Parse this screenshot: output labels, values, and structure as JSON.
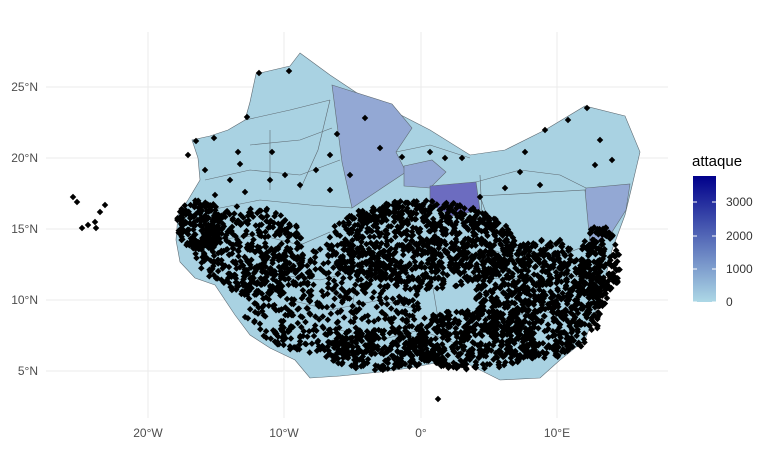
{
  "map": {
    "x_ticks": [
      "20°W",
      "10°W",
      "0°",
      "10°E"
    ],
    "y_ticks": [
      "25°N",
      "20°N",
      "15°N",
      "10°N",
      "5°N"
    ]
  },
  "legend": {
    "title": "attaque",
    "ticks": [
      "3000",
      "2000",
      "1000",
      "0"
    ],
    "color_low": "#add8e6",
    "color_high": "#00008b"
  },
  "colors": {
    "background": "#ffffff",
    "grid": "#ebebeb",
    "border": "#5f6b73",
    "points": "#000000",
    "region_light": "#a9d2e2",
    "region_mid": "#93a8d4",
    "region_dark": "#6c6cc0"
  }
}
